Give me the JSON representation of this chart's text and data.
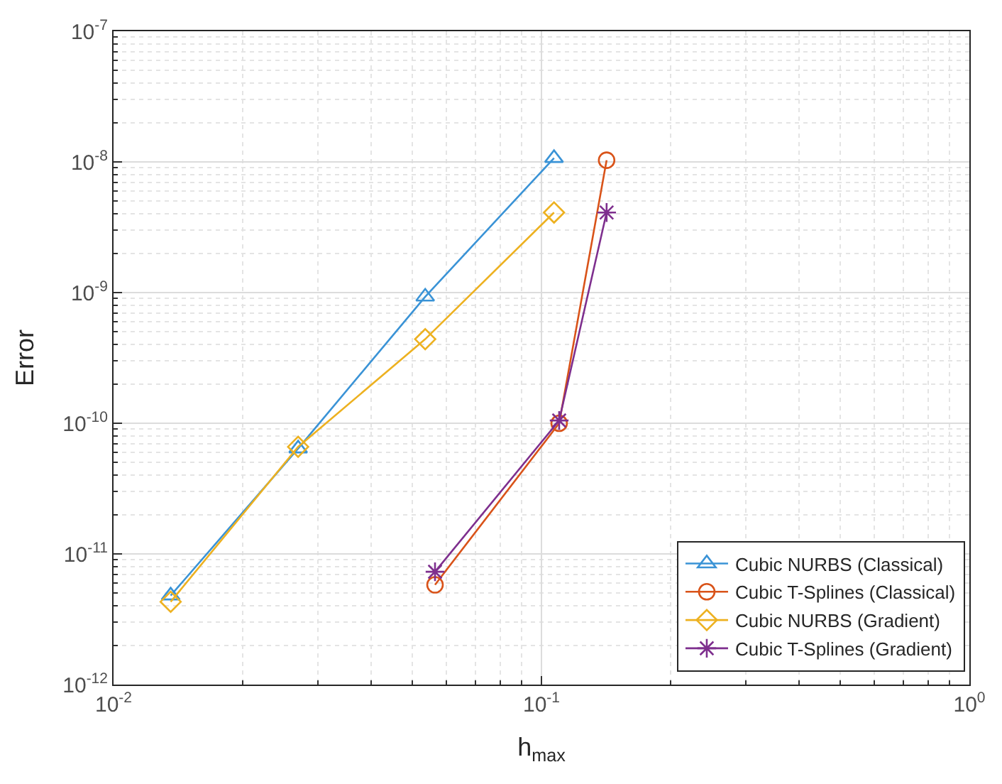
{
  "chart_data": {
    "type": "line",
    "xlabel": "h$_{max}$",
    "ylabel": "Error",
    "log": "xy",
    "xlim": [
      0.01,
      1
    ],
    "ylim": [
      1e-12,
      1e-07
    ],
    "xticks": [
      {
        "value": 0.01,
        "label": "10$^{-2}$"
      },
      {
        "value": 0.1,
        "label": "10$^{-1}$"
      },
      {
        "value": 1,
        "label": "10$^{0}$"
      }
    ],
    "yticks": [
      {
        "value": 1e-12,
        "label": "10$^{-12}$"
      },
      {
        "value": 1e-11,
        "label": "10$^{-11}$"
      },
      {
        "value": 1e-10,
        "label": "10$^{-10}$"
      },
      {
        "value": 1e-09,
        "label": "10$^{-9}$"
      },
      {
        "value": 1e-08,
        "label": "10$^{-8}$"
      },
      {
        "value": 1e-07,
        "label": "10$^{-7}$"
      }
    ],
    "grid": true,
    "legend": "bottom right",
    "line_style": "solid",
    "series": [
      {
        "name": "Cubic NURBS (Classical)",
        "color": "#3a93d6",
        "marker": "triangle",
        "x": [
          0.0136,
          0.027,
          0.0535,
          0.107
        ],
        "values": [
          4.8e-12,
          6.4e-11,
          9.3e-10,
          1.07e-08
        ]
      },
      {
        "name": "Cubic T-Splines (Classical)",
        "color": "#d95319",
        "marker": "circle",
        "x": [
          0.0564,
          0.11,
          0.142
        ],
        "values": [
          5.8e-12,
          1e-10,
          1.03e-08
        ]
      },
      {
        "name": "Cubic NURBS (Gradient)",
        "color": "#edb120",
        "marker": "diamond",
        "x": [
          0.0136,
          0.027,
          0.0535,
          0.107
        ],
        "values": [
          4.3e-12,
          6.6e-11,
          4.4e-10,
          4.1e-09
        ]
      },
      {
        "name": "Cubic T-Splines (Gradient)",
        "color": "#7e2f8e",
        "marker": "cross",
        "x": [
          0.0564,
          0.11,
          0.142
        ],
        "values": [
          7.3e-12,
          1.05e-10,
          4.1e-09
        ]
      }
    ]
  }
}
